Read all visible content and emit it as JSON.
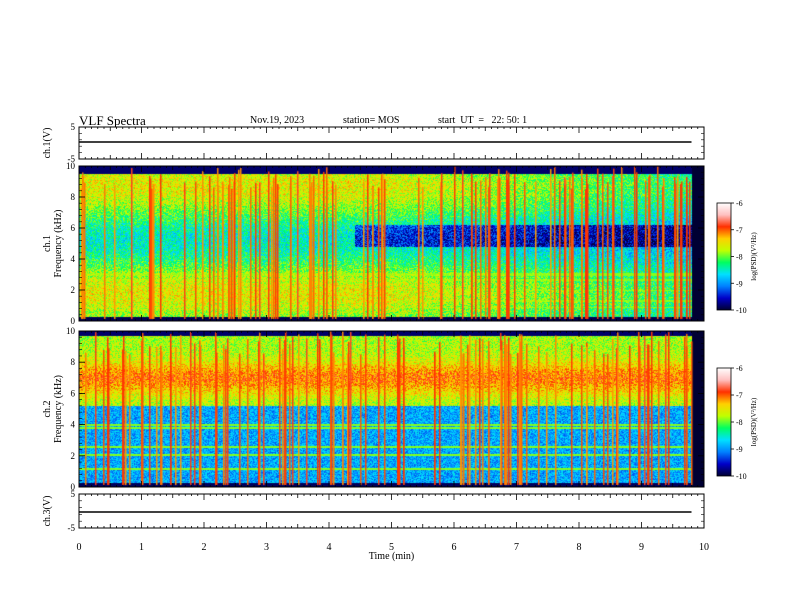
{
  "header": {
    "title": "VLF Spectra",
    "date": "Nov.19, 2023",
    "station": "station= MOS",
    "start": "start  UT  =   22: 50: 1"
  },
  "colors": {
    "colormap": [
      "#000033",
      "#0000c8",
      "#0080ff",
      "#00e0ff",
      "#00ff60",
      "#c0ff00",
      "#ffd000",
      "#ff3000",
      "#ffc0c0",
      "#ffffff"
    ],
    "trace": "#000000"
  },
  "chart_data": [
    {
      "type": "line",
      "name": "ch1-waveform",
      "ylabel": "ch.1(V)",
      "ylim": [
        -5,
        5
      ],
      "yticks": [
        "5",
        "-5"
      ],
      "x_range": [
        0,
        10
      ],
      "series": [
        {
          "values": [
            {
              "t": 0,
              "v": 0
            },
            {
              "t": 9.8,
              "v": 0
            }
          ]
        }
      ]
    },
    {
      "type": "heatmap",
      "name": "ch1-spectrogram",
      "ylabel": "ch.1\nFrequency (kHz)",
      "ylim": [
        0,
        10
      ],
      "yticks": [
        "0",
        "2",
        "4",
        "6",
        "8",
        "10"
      ],
      "colorbar": {
        "label": "log(PSD)(V²/Hz)",
        "range": [
          -10,
          -6
        ],
        "ticks": [
          "-6",
          "-7",
          "-8",
          "-9",
          "-10"
        ]
      },
      "data_end_min": 9.8
    },
    {
      "type": "heatmap",
      "name": "ch2-spectrogram",
      "ylabel": "ch.2\nFrequency (kHz)",
      "ylim": [
        0,
        10
      ],
      "yticks": [
        "0",
        "2",
        "4",
        "6",
        "8",
        "10"
      ],
      "colorbar": {
        "label": "log(PSD)(V²/Hz)",
        "range": [
          -10,
          -6
        ],
        "ticks": [
          "-6",
          "-7",
          "-8",
          "-9",
          "-10"
        ]
      },
      "data_end_min": 9.8
    },
    {
      "type": "line",
      "name": "ch3-waveform",
      "ylabel": "ch.3(V)",
      "ylim": [
        -5,
        5
      ],
      "yticks": [
        "5",
        "-5"
      ],
      "x_range": [
        0,
        10
      ],
      "series": [
        {
          "values": [
            {
              "t": 0,
              "v": 0
            },
            {
              "t": 9.8,
              "v": 0
            }
          ]
        }
      ]
    }
  ],
  "xaxis": {
    "label": "Time (min)",
    "ticks": [
      "0",
      "1",
      "2",
      "3",
      "4",
      "5",
      "6",
      "7",
      "8",
      "9",
      "10"
    ],
    "range": [
      0,
      10
    ]
  }
}
